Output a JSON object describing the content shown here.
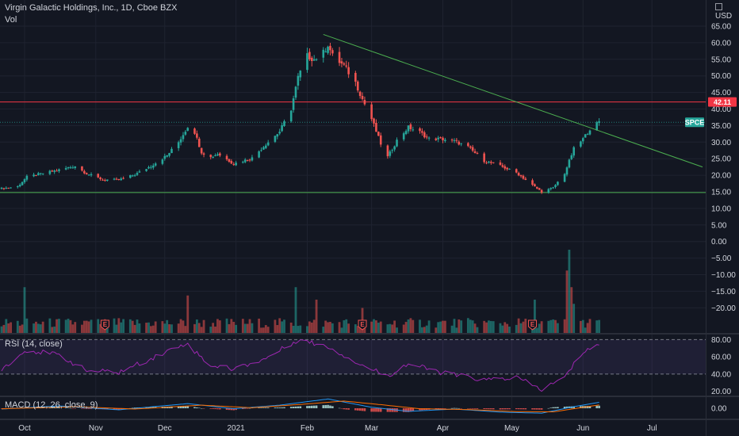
{
  "header": {
    "title": "Virgin Galactic Holdings, Inc., 1D, Cboe BZX",
    "vol_label": "Vol",
    "currency": "USD"
  },
  "price_axis": {
    "ticks": [
      "65.00",
      "60.00",
      "55.00",
      "50.00",
      "45.00",
      "40.00",
      "35.00",
      "30.00",
      "25.00",
      "20.00",
      "15.00",
      "10.00",
      "5.00",
      "0.00",
      "−5.00",
      "−10.00",
      "−15.00",
      "−20.00"
    ]
  },
  "price_tags": [
    {
      "label": "42.11",
      "color": "#f23645"
    },
    {
      "label": "SPCE",
      "color": "#26a69a"
    }
  ],
  "rsi": {
    "label": "RSI (14, close)",
    "ticks": [
      "80.00",
      "60.00",
      "40.00",
      "20.00"
    ]
  },
  "macd": {
    "label": "MACD (12, 26, close, 9)",
    "ticks": [
      "0.00"
    ]
  },
  "time_axis": {
    "labels": [
      "Oct",
      "Nov",
      "Dec",
      "2021",
      "Feb",
      "Mar",
      "Apr",
      "May",
      "Jun",
      "Jul"
    ]
  },
  "earnings_markers": [
    "E",
    "E",
    "E"
  ],
  "colors": {
    "background": "#131722",
    "up": "#26a69a",
    "down": "#ef5350",
    "trendline": "#4caf50",
    "support": "#4caf50",
    "resistance": "#f23645",
    "rsi_line": "#9c27b0",
    "macd_line": "#2196f3",
    "signal_line": "#ff6d00"
  },
  "chart_data": {
    "type": "candlestick",
    "title": "Virgin Galactic Holdings, Inc., 1D, Cboe BZX",
    "currency": "USD",
    "x_range": [
      "2020-09-21",
      "2021-07-23"
    ],
    "y_range": [
      -22,
      68
    ],
    "anchors": [
      [
        "2020-09-21",
        16.0
      ],
      [
        "2020-09-28",
        16.6
      ],
      [
        "2020-10-02",
        19.5
      ],
      [
        "2020-10-09",
        20.6
      ],
      [
        "2020-10-16",
        21.6
      ],
      [
        "2020-10-23",
        22.8
      ],
      [
        "2020-10-28",
        20.5
      ],
      [
        "2020-11-04",
        18.7
      ],
      [
        "2020-11-11",
        18.6
      ],
      [
        "2020-11-18",
        20.2
      ],
      [
        "2020-11-25",
        22.8
      ],
      [
        "2020-12-02",
        26.0
      ],
      [
        "2020-12-07",
        30.0
      ],
      [
        "2020-12-11",
        34.7
      ],
      [
        "2020-12-14",
        33.0
      ],
      [
        "2020-12-17",
        27.0
      ],
      [
        "2020-12-21",
        25.4
      ],
      [
        "2020-12-24",
        26.5
      ],
      [
        "2020-12-31",
        23.5
      ],
      [
        "2021-01-08",
        25.2
      ],
      [
        "2021-01-14",
        29.4
      ],
      [
        "2021-01-20",
        33.2
      ],
      [
        "2021-01-25",
        40.0
      ],
      [
        "2021-01-28",
        49.5
      ],
      [
        "2021-02-01",
        56.0
      ],
      [
        "2021-02-04",
        55.0
      ],
      [
        "2021-02-08",
        57.0
      ],
      [
        "2021-02-10",
        59.5
      ],
      [
        "2021-02-12",
        56.0
      ],
      [
        "2021-02-17",
        53.0
      ],
      [
        "2021-02-22",
        48.0
      ],
      [
        "2021-02-25",
        43.0
      ],
      [
        "2021-03-01",
        37.0
      ],
      [
        "2021-03-05",
        29.5
      ],
      [
        "2021-03-08",
        25.5
      ],
      [
        "2021-03-12",
        30.5
      ],
      [
        "2021-03-17",
        34.5
      ],
      [
        "2021-03-22",
        33.0
      ],
      [
        "2021-03-26",
        31.0
      ],
      [
        "2021-03-31",
        31.0
      ],
      [
        "2021-04-06",
        30.3
      ],
      [
        "2021-04-12",
        28.5
      ],
      [
        "2021-04-19",
        24.4
      ],
      [
        "2021-04-26",
        22.8
      ],
      [
        "2021-05-03",
        20.8
      ],
      [
        "2021-05-10",
        17.0
      ],
      [
        "2021-05-14",
        15.0
      ],
      [
        "2021-05-19",
        16.2
      ],
      [
        "2021-05-24",
        20.6
      ],
      [
        "2021-05-28",
        28.0
      ],
      [
        "2021-06-01",
        31.0
      ],
      [
        "2021-06-04",
        34.0
      ],
      [
        "2021-06-08",
        36.0
      ]
    ],
    "last_close": 36.0,
    "horizontal_levels": [
      {
        "value": 42.11,
        "color": "#f23645"
      },
      {
        "value": 14.8,
        "color": "#4caf50"
      }
    ],
    "trendline": {
      "from": [
        "2021-02-08",
        62.5
      ],
      "to": [
        "2021-07-23",
        22.5
      ]
    },
    "volume_spikes": [
      {
        "date": "2020-10-01",
        "value": 0.55
      },
      {
        "date": "2020-12-11",
        "value": 0.45
      },
      {
        "date": "2021-01-27",
        "value": 0.55
      },
      {
        "date": "2021-02-05",
        "value": 0.4
      },
      {
        "date": "2021-02-25",
        "value": 0.3
      },
      {
        "date": "2021-05-11",
        "value": 0.4
      },
      {
        "date": "2021-05-25",
        "value": 0.75
      },
      {
        "date": "2021-05-26",
        "value": 1.0
      },
      {
        "date": "2021-05-27",
        "value": 0.55
      },
      {
        "date": "2021-05-28",
        "value": 0.35
      }
    ],
    "earnings_dates": [
      "2020-11-05",
      "2021-02-25",
      "2021-05-10"
    ],
    "rsi_range": [
      15,
      85
    ],
    "rsi_bands": [
      80,
      40
    ],
    "rsi_anchors": [
      [
        "2020-09-21",
        46
      ],
      [
        "2020-10-02",
        68
      ],
      [
        "2020-10-16",
        62
      ],
      [
        "2020-10-28",
        44
      ],
      [
        "2020-11-11",
        42
      ],
      [
        "2020-11-25",
        58
      ],
      [
        "2020-12-10",
        76
      ],
      [
        "2020-12-21",
        50
      ],
      [
        "2020-12-31",
        46
      ],
      [
        "2021-01-14",
        58
      ],
      [
        "2021-01-28",
        80
      ],
      [
        "2021-02-10",
        72
      ],
      [
        "2021-02-25",
        50
      ],
      [
        "2021-03-08",
        38
      ],
      [
        "2021-03-17",
        52
      ],
      [
        "2021-03-31",
        42
      ],
      [
        "2021-04-19",
        33
      ],
      [
        "2021-05-03",
        36
      ],
      [
        "2021-05-14",
        22
      ],
      [
        "2021-05-24",
        36
      ],
      [
        "2021-06-01",
        66
      ],
      [
        "2021-06-08",
        75
      ]
    ],
    "macd_range": [
      -4,
      4
    ],
    "macd_anchors": [
      [
        "2020-09-21",
        -0.3
      ],
      [
        "2020-10-16",
        0.9
      ],
      [
        "2020-11-11",
        -0.6
      ],
      [
        "2020-12-11",
        1.8
      ],
      [
        "2020-12-31",
        -0.2
      ],
      [
        "2021-01-20",
        1.2
      ],
      [
        "2021-02-10",
        3.6
      ],
      [
        "2021-03-01",
        0.4
      ],
      [
        "2021-03-17",
        -1.2
      ],
      [
        "2021-04-06",
        -0.3
      ],
      [
        "2021-04-26",
        -1.5
      ],
      [
        "2021-05-14",
        -1.9
      ],
      [
        "2021-05-28",
        0.6
      ],
      [
        "2021-06-08",
        2.3
      ]
    ],
    "signal_anchors": [
      [
        "2020-09-21",
        -0.2
      ],
      [
        "2020-10-23",
        0.6
      ],
      [
        "2020-11-18",
        -0.3
      ],
      [
        "2020-12-17",
        1.2
      ],
      [
        "2021-01-08",
        0.2
      ],
      [
        "2021-01-28",
        1.4
      ],
      [
        "2021-02-17",
        2.8
      ],
      [
        "2021-03-05",
        1.4
      ],
      [
        "2021-03-22",
        -0.2
      ],
      [
        "2021-04-12",
        -0.5
      ],
      [
        "2021-05-03",
        -1.3
      ],
      [
        "2021-05-19",
        -1.4
      ],
      [
        "2021-06-08",
        1.3
      ]
    ]
  }
}
